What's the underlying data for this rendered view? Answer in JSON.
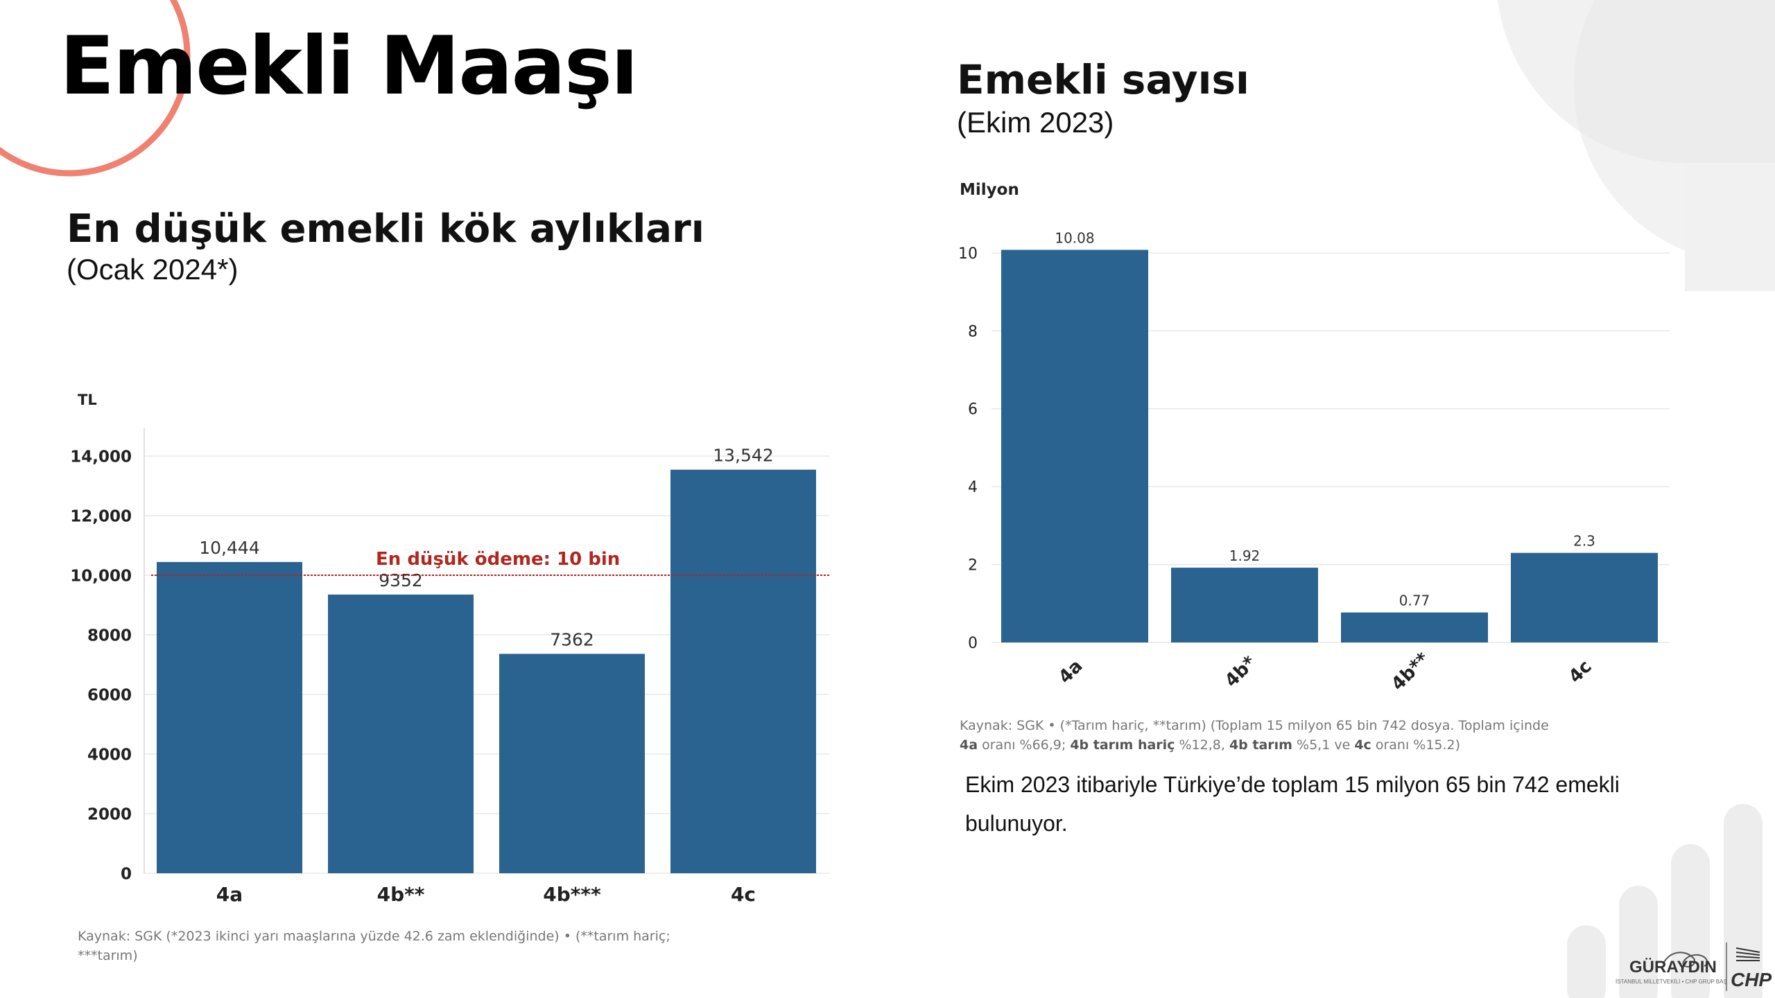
{
  "slide": {
    "title": "Emekli Maaşı"
  },
  "left_panel": {
    "title": "En düşük emekli kök aylıkları",
    "subtitle": "(Ocak 2024*)",
    "source": "Kaynak: SGK (*2023 ikinci yarı maaşlarına yüzde 42.6 zam eklendiğinde) • (**tarım hariç; ***tarım)"
  },
  "right_panel": {
    "title": "Emekli sayısı",
    "subtitle": "(Ekim 2023)",
    "source_parts": [
      {
        "t": "Kaynak: SGK • (*Tarım hariç, **tarım) (Toplam 15 milyon 65 bin 742 dosya. Toplam içinde ",
        "b": false
      },
      {
        "t": "4a",
        "b": true
      },
      {
        "t": " oranı %66,9; ",
        "b": false
      },
      {
        "t": "4b tarım hariç",
        "b": true
      },
      {
        "t": " %12,8, ",
        "b": false
      },
      {
        "t": "4b tarım",
        "b": true
      },
      {
        "t": " %5,1 ve ",
        "b": false
      },
      {
        "t": "4c",
        "b": true
      },
      {
        "t": " oranı %15.2)",
        "b": false
      }
    ],
    "note": "Ekim 2023 itibariyle Türkiye’de toplam 15 milyon 65 bin 742 emekli bulunuyor."
  },
  "chart_data": [
    {
      "type": "bar",
      "title": "En düşük emekli kök aylıkları",
      "ylabel": "TL",
      "categories": [
        "4a",
        "4b**",
        "4b***",
        "4c"
      ],
      "values": [
        10444,
        9352,
        7362,
        13542
      ],
      "value_labels": [
        "10,444",
        "9352",
        "7362",
        "13,542"
      ],
      "ylim": [
        0,
        14000
      ],
      "yticks": [
        0,
        2000,
        4000,
        6000,
        8000,
        10000,
        12000,
        14000
      ],
      "ytick_labels": [
        "0",
        "2000",
        "4000",
        "6000",
        "8000",
        "10,000",
        "12,000",
        "14,000"
      ],
      "reference_line": {
        "value": 10000,
        "label": "En düşük ödeme: 10 bin",
        "color": "#b3261e"
      },
      "bar_color": "#2a6290",
      "grid": true
    },
    {
      "type": "bar",
      "title": "Emekli sayısı",
      "ylabel": "Milyon",
      "categories": [
        "4a",
        "4b*",
        "4b**",
        "4c"
      ],
      "values": [
        10.08,
        1.92,
        0.77,
        2.3
      ],
      "value_labels": [
        "10.08",
        "1.92",
        "0.77",
        "2.3"
      ],
      "ylim": [
        0,
        10
      ],
      "yticks": [
        0,
        2,
        4,
        6,
        8,
        10
      ],
      "ytick_labels": [
        "0",
        "2",
        "4",
        "6",
        "8",
        "10"
      ],
      "bar_color": "#2a6290",
      "grid": true
    }
  ],
  "logo": {
    "name": "GÜRAYDIN",
    "party": "CHP",
    "caption": "İSTANBUL MİLLETVEKİLİ • CHP GRUP BAŞKANVEKİLİ"
  },
  "colors": {
    "accent_circle": "#f08070",
    "decor_gray": "#ededed",
    "bar": "#2a6290",
    "reference": "#b3261e"
  }
}
